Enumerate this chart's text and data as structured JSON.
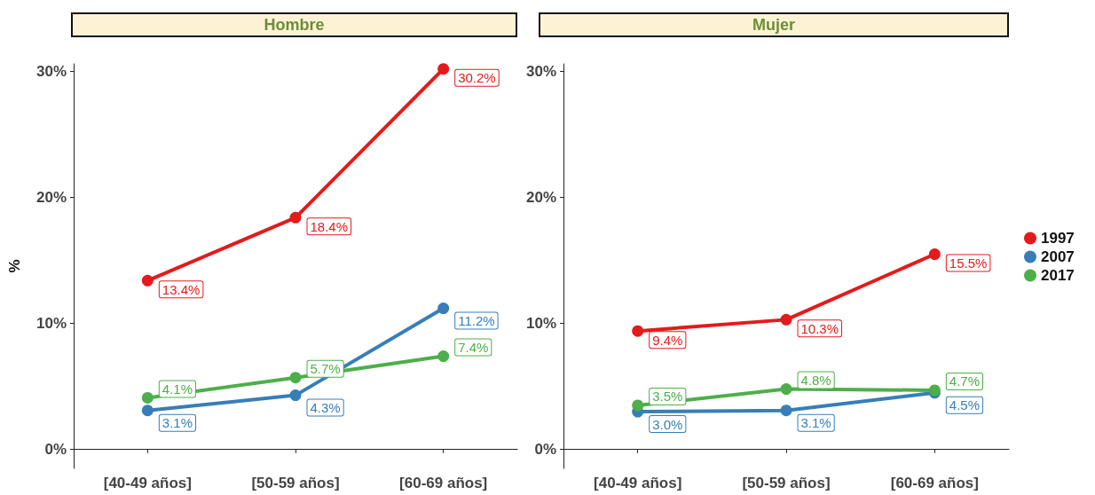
{
  "chart_data": [
    {
      "type": "line",
      "title": "Hombre",
      "ylabel": "%",
      "categories": [
        "[40-49 años]",
        "[50-59 años]",
        "[60-69 años]"
      ],
      "ylim": [
        -1.5,
        30.6
      ],
      "yticks": [
        {
          "value": 0,
          "label": "0%"
        },
        {
          "value": 10,
          "label": "10%"
        },
        {
          "value": 20,
          "label": "20%"
        },
        {
          "value": 30,
          "label": "30%"
        }
      ],
      "grid": false,
      "legend": false,
      "marker": "circle",
      "line_style": "solid",
      "series": [
        {
          "color": "#e41a1c",
          "values": [
            13.4,
            18.4,
            30.2
          ],
          "value_labels": [
            "13.4%",
            "18.4%",
            "30.2%"
          ]
        },
        {
          "color": "#377eb8",
          "values": [
            3.1,
            4.3,
            11.2
          ],
          "value_labels": [
            "3.1%",
            "4.3%",
            "11.2%"
          ]
        },
        {
          "color": "#4daf4a",
          "values": [
            4.1,
            5.7,
            7.4
          ],
          "value_labels": [
            "4.1%",
            "5.7%",
            "7.4%"
          ]
        }
      ]
    },
    {
      "type": "line",
      "title": "Mujer",
      "categories": [
        "[40-49 años]",
        "[50-59 años]",
        "[60-69 años]"
      ],
      "ylim": [
        -1.5,
        30.6
      ],
      "yticks": [
        {
          "value": 0,
          "label": "0%"
        },
        {
          "value": 10,
          "label": "10%"
        },
        {
          "value": 20,
          "label": "20%"
        },
        {
          "value": 30,
          "label": "30%"
        }
      ],
      "grid": false,
      "legend": "right",
      "marker": "circle",
      "line_style": "solid",
      "series": [
        {
          "name": "1997",
          "color": "#e41a1c",
          "values": [
            9.4,
            10.3,
            15.5
          ],
          "value_labels": [
            "9.4%",
            "10.3%",
            "15.5%"
          ]
        },
        {
          "name": "2007",
          "color": "#377eb8",
          "values": [
            3.0,
            3.1,
            4.5
          ],
          "value_labels": [
            "3.0%",
            "3.1%",
            "4.5%"
          ]
        },
        {
          "name": "2017",
          "color": "#4daf4a",
          "values": [
            3.5,
            4.8,
            4.7
          ],
          "value_labels": [
            "3.5%",
            "4.8%",
            "4.7%"
          ]
        }
      ]
    }
  ]
}
